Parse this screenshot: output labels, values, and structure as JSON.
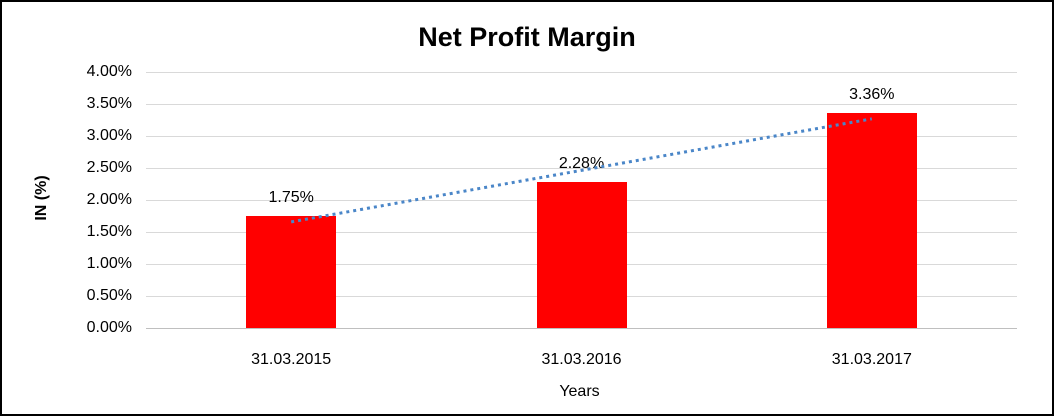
{
  "chart_data": {
    "type": "bar",
    "title": "Net Profit Margin",
    "xlabel": "Years",
    "ylabel": "IN (%)",
    "categories": [
      "31.03.2015",
      "31.03.2016",
      "31.03.2017"
    ],
    "values": [
      1.75,
      2.28,
      3.36
    ],
    "data_labels": [
      "1.75%",
      "2.28%",
      "3.36%"
    ],
    "ylim": [
      0,
      4
    ],
    "ytick_step": 0.5,
    "ytick_labels": [
      "0.00%",
      "0.50%",
      "1.00%",
      "1.50%",
      "2.00%",
      "2.50%",
      "3.00%",
      "3.50%",
      "4.00%"
    ],
    "grid": true,
    "legend": "none",
    "trendline": {
      "type": "linear",
      "line_style": "dotted",
      "color": "#4A86C8"
    },
    "colors": {
      "bar": "#FF0000",
      "gridline": "#D9D9D9",
      "axis_line": "#BFBFBF",
      "text": "#000000",
      "background": "#FFFFFF",
      "border": "#000000"
    }
  }
}
